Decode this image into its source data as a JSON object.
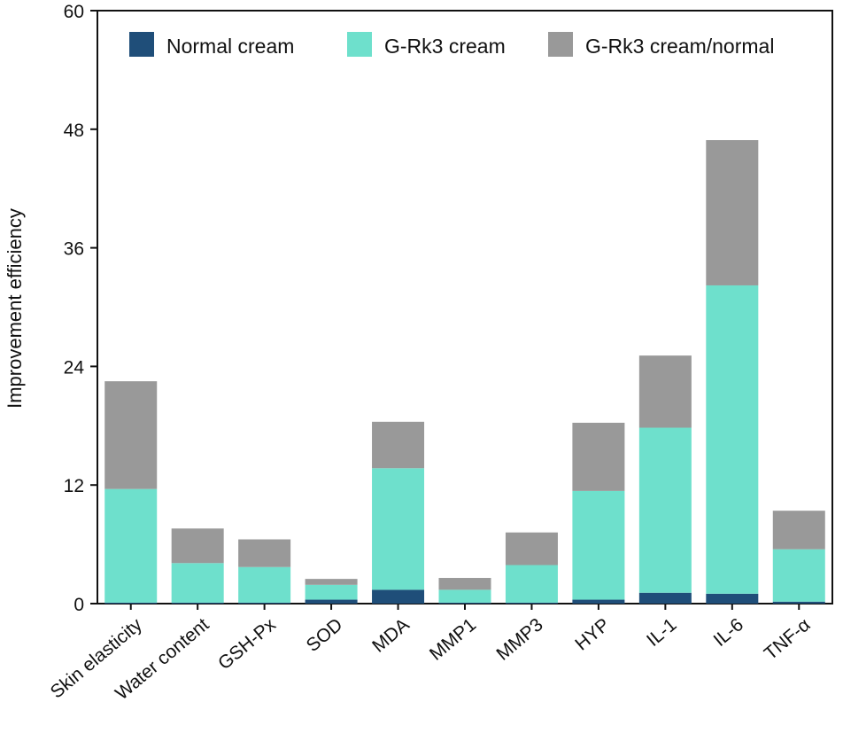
{
  "chart_data": {
    "type": "bar",
    "stacked": true,
    "title": "",
    "xlabel": "",
    "ylabel": "Improvement efficiency",
    "ylim": [
      0,
      60
    ],
    "yticks": [
      "0",
      "12",
      "24",
      "36",
      "48",
      "60"
    ],
    "grid": false,
    "legend_position": "top",
    "categories": [
      "Skin elasticity",
      "Water content",
      "GSH-Px",
      "SOD",
      "MDA",
      "MMP1",
      "MMP3",
      "HYP",
      "IL-1",
      "IL-6",
      "TNF-α"
    ],
    "series": [
      {
        "name": "Normal cream",
        "color": "#1f4e79",
        "values": [
          0.1,
          0.1,
          0.1,
          0.4,
          1.4,
          0.1,
          0.1,
          0.4,
          1.1,
          1.0,
          0.2
        ]
      },
      {
        "name": "G-Rk3 cream",
        "color": "#6ee0cc",
        "values": [
          11.5,
          4.0,
          3.6,
          1.5,
          12.3,
          1.3,
          3.8,
          11.0,
          16.7,
          31.2,
          5.3
        ]
      },
      {
        "name": "G-Rk3 cream/normal",
        "color": "#999999",
        "values": [
          10.9,
          3.5,
          2.8,
          0.6,
          4.7,
          1.2,
          3.3,
          6.9,
          7.3,
          14.7,
          3.9
        ]
      }
    ]
  }
}
